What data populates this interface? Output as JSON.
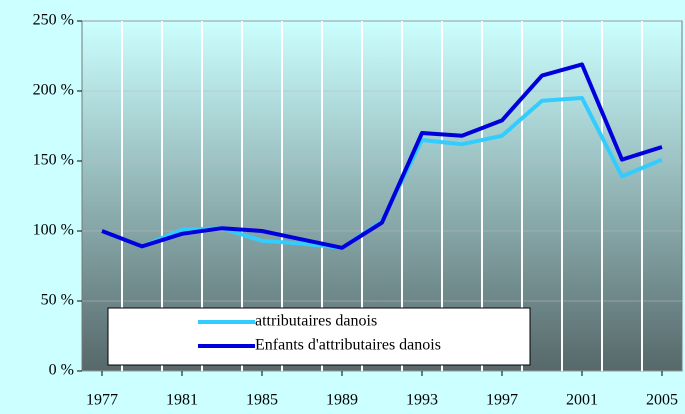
{
  "chart_data": {
    "type": "line",
    "x": [
      1977,
      1979,
      1981,
      1983,
      1985,
      1987,
      1989,
      1991,
      1993,
      1995,
      1997,
      1999,
      2001,
      2003,
      2005
    ],
    "series": [
      {
        "name": "attributaires danois",
        "color": "#33ccff",
        "values": [
          100,
          89,
          101,
          102,
          93,
          91,
          88,
          107,
          165,
          162,
          168,
          193,
          195,
          139,
          151
        ]
      },
      {
        "name": "Enfants d'attributaires danois",
        "color": "#0000dd",
        "values": [
          100,
          89,
          98,
          102,
          100,
          94,
          88,
          106,
          170,
          168,
          179,
          211,
          219,
          151,
          160
        ]
      }
    ],
    "xlim": [
      1976,
      2006
    ],
    "xticks": [
      1977,
      1981,
      1985,
      1989,
      1993,
      1997,
      2001,
      2005
    ],
    "xgrid": [
      1978,
      1980,
      1982,
      1984,
      1986,
      1988,
      1990,
      1992,
      1994,
      1996,
      1998,
      2000,
      2002,
      2004
    ],
    "ylim": [
      0,
      250
    ],
    "yticks": [
      {
        "value": 0,
        "label": "0 %"
      },
      {
        "value": 50,
        "label": "50 %"
      },
      {
        "value": 100,
        "label": "100 %"
      },
      {
        "value": 150,
        "label": "150 %"
      },
      {
        "value": 200,
        "label": "200 %"
      },
      {
        "value": 250,
        "label": "250 %"
      }
    ],
    "grid": true
  }
}
